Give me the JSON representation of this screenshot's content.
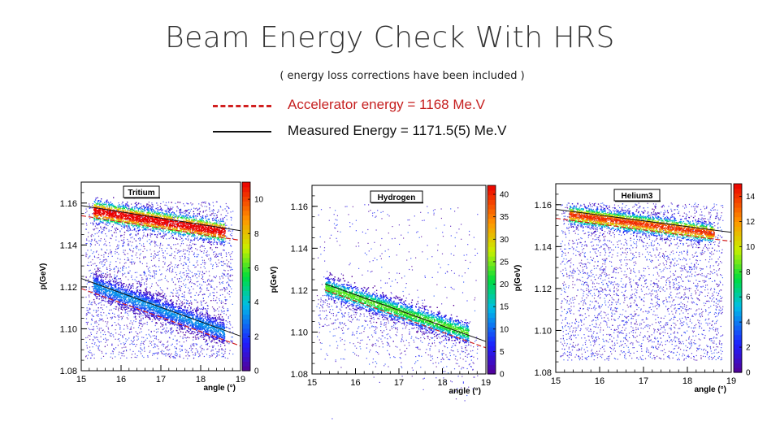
{
  "slide": {
    "title": "Beam Energy Check With HRS",
    "subtitle": "( energy loss corrections have been included )"
  },
  "legend": {
    "accelerator_label": "Accelerator energy = 1168 Me.V",
    "measured_label": "Measured Energy = 1171.5(5) Me.V",
    "accelerator_color": "#d12020",
    "measured_color": "#111111"
  },
  "chart_data": [
    {
      "type": "heatmap",
      "title": "Tritium",
      "xlabel": "angle (°)",
      "ylabel": "p(GeV)",
      "xlim": [
        15,
        19
      ],
      "ylim": [
        1.08,
        1.17
      ],
      "xticks": [
        15,
        16,
        17,
        18,
        19
      ],
      "yticks": [
        1.08,
        1.1,
        1.12,
        1.14,
        1.16
      ],
      "zlim": [
        0,
        11
      ],
      "zticks": [
        0,
        2,
        4,
        6,
        8,
        10
      ],
      "bands": [
        {
          "x": [
            15.3,
            18.6
          ],
          "y": [
            1.1565,
            1.1465
          ],
          "width": 0.0028,
          "peak": 11
        },
        {
          "x": [
            15.3,
            18.6
          ],
          "y": [
            1.121,
            1.0985
          ],
          "width": 0.003,
          "peak": 3
        }
      ],
      "measured_lines": [
        {
          "x": [
            15.0,
            19.0
          ],
          "y": [
            1.1588,
            1.1468
          ]
        },
        {
          "x": [
            15.0,
            19.0
          ],
          "y": [
            1.124,
            1.0965
          ]
        }
      ],
      "accelerator_lines": [
        {
          "x": [
            15.0,
            19.0
          ],
          "y": [
            1.154,
            1.1422
          ]
        },
        {
          "x": [
            15.0,
            19.0
          ],
          "y": [
            1.1192,
            1.0918
          ]
        }
      ],
      "background_density": 5
    },
    {
      "type": "heatmap",
      "title": "Hydrogen",
      "xlabel": "angle (°)",
      "ylabel": "p(GeV)",
      "xlim": [
        15,
        19
      ],
      "ylim": [
        1.08,
        1.17
      ],
      "xticks": [
        15,
        16,
        17,
        18,
        19
      ],
      "yticks": [
        1.08,
        1.1,
        1.12,
        1.14,
        1.16
      ],
      "zlim": [
        0,
        42
      ],
      "zticks": [
        0,
        5,
        10,
        15,
        20,
        25,
        30,
        35,
        40
      ],
      "bands": [
        {
          "x": [
            15.3,
            18.6
          ],
          "y": [
            1.1215,
            1.0995
          ],
          "width": 0.0026,
          "peak": 22
        }
      ],
      "measured_lines": [
        {
          "x": [
            15.3,
            19.0
          ],
          "y": [
            1.123,
            1.0955
          ]
        }
      ],
      "accelerator_lines": [
        {
          "x": [
            15.3,
            19.0
          ],
          "y": [
            1.12,
            1.0925
          ]
        }
      ],
      "background_density": 1.5
    },
    {
      "type": "heatmap",
      "title": "Helium3",
      "xlabel": "angle (°)",
      "ylabel": "p(GeV)",
      "xlim": [
        15,
        19
      ],
      "ylim": [
        1.08,
        1.17
      ],
      "xticks": [
        15,
        16,
        17,
        18,
        19
      ],
      "yticks": [
        1.08,
        1.1,
        1.12,
        1.14,
        1.16
      ],
      "zlim": [
        0,
        15
      ],
      "zticks": [
        0,
        2,
        4,
        6,
        8,
        10,
        12,
        14
      ],
      "bands": [
        {
          "x": [
            15.3,
            18.6
          ],
          "y": [
            1.1555,
            1.1465
          ],
          "width": 0.0025,
          "peak": 13
        }
      ],
      "measured_lines": [
        {
          "x": [
            15.0,
            19.0
          ],
          "y": [
            1.1578,
            1.1468
          ]
        }
      ],
      "accelerator_lines": [
        {
          "x": [
            15.0,
            19.0
          ],
          "y": [
            1.1535,
            1.1425
          ]
        }
      ],
      "background_density": 5
    }
  ]
}
